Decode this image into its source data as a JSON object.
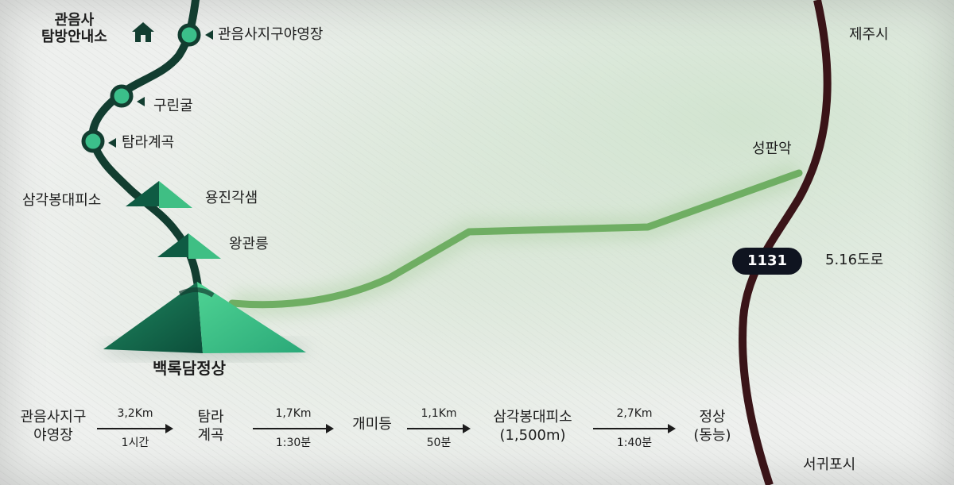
{
  "labels": {
    "info_center_line1": "관음사",
    "info_center_line2": "탐방안내소",
    "campground": "관음사지구야영장",
    "gurin_cave": "구린굴",
    "tamra_valley": "탐라계곡",
    "samgakbong_shelter": "삼각봉대피소",
    "yongjin_gaksaem": "용진각샘",
    "wanggwan_reung": "왕관릉",
    "summit": "백록담정상",
    "seongpanak": "성판악",
    "jeju_city": "제주시",
    "seogwipo_city": "서귀포시",
    "road_number": "1131",
    "road_name": "5.16도로"
  },
  "course": {
    "steps": [
      {
        "line1": "관음사지구",
        "line2": "야영장"
      },
      {
        "line1": "탐라",
        "line2": "계곡"
      },
      {
        "line1": "개미등",
        "line2": ""
      },
      {
        "line1": "삼각봉대피소",
        "line2": "(1,500m)"
      },
      {
        "line1": "정상",
        "line2": "(동능)"
      }
    ],
    "segments": [
      {
        "distance": "3,2Km",
        "time": "1시간"
      },
      {
        "distance": "1,7Km",
        "time": "1:30분"
      },
      {
        "distance": "1,1Km",
        "time": "50분"
      },
      {
        "distance": "2,7Km",
        "time": "1:40분"
      }
    ]
  },
  "colors": {
    "trail_dark": "#123d30",
    "trail_green": "#6fae63",
    "road": "#3a1418",
    "node_fill": "#3bbf8a",
    "peak_light": "#3fbf84",
    "peak_dark": "#0f5b43"
  },
  "icons": {
    "info_center": "house-icon"
  }
}
